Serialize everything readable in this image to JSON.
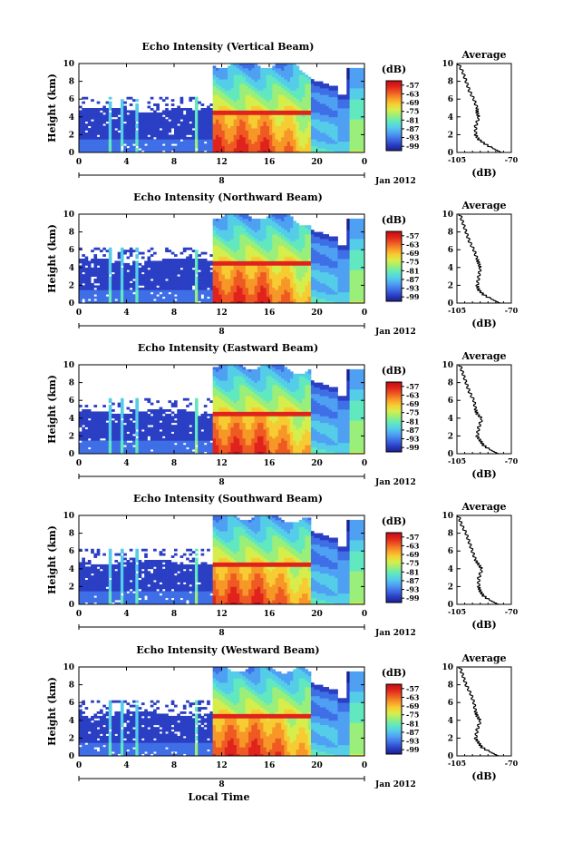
{
  "colors": {
    "colormap": [
      "#1b1f8f",
      "#2a3fc4",
      "#3f6fe6",
      "#4fa0f3",
      "#55cde9",
      "#61e8bf",
      "#9aee7a",
      "#d6ee4c",
      "#f7cc33",
      "#f79728",
      "#ee5a22",
      "#e0231c",
      "#c00d14"
    ],
    "axis": "#000000"
  },
  "chart_data": [
    {
      "type": "heatmap",
      "title": "Echo Intensity (Vertical Beam)",
      "ylabel": "Height (km)",
      "y_ticks": [
        "0",
        "2",
        "4",
        "6",
        "8",
        "10"
      ],
      "ylim": [
        0,
        10
      ],
      "x_ticks": [
        "0",
        "4",
        "8",
        "12",
        "16",
        "20",
        "0"
      ],
      "xlim": [
        0,
        24
      ],
      "date_tick": "8",
      "date_label": "Jan 2012",
      "colorbar_unit": "(dB)",
      "colorbar_ticks": [
        "-57",
        "-63",
        "-69",
        "-75",
        "-81",
        "-87",
        "-93",
        "-99"
      ],
      "zlim": [
        -102,
        -54
      ]
    },
    {
      "type": "heatmap",
      "title": "Echo Intensity (Northward Beam)",
      "ylabel": "Height (km)",
      "y_ticks": [
        "0",
        "2",
        "4",
        "6",
        "8",
        "10"
      ],
      "ylim": [
        0,
        10
      ],
      "x_ticks": [
        "0",
        "4",
        "8",
        "12",
        "16",
        "20",
        "0"
      ],
      "xlim": [
        0,
        24
      ],
      "date_tick": "8",
      "date_label": "Jan 2012",
      "colorbar_unit": "(dB)",
      "colorbar_ticks": [
        "-57",
        "-63",
        "-69",
        "-75",
        "-81",
        "-87",
        "-93",
        "-99"
      ],
      "zlim": [
        -102,
        -54
      ]
    },
    {
      "type": "heatmap",
      "title": "Echo Intensity (Eastward Beam)",
      "ylabel": "Height (km)",
      "y_ticks": [
        "0",
        "2",
        "4",
        "6",
        "8",
        "10"
      ],
      "ylim": [
        0,
        10
      ],
      "x_ticks": [
        "0",
        "4",
        "8",
        "12",
        "16",
        "20",
        "0"
      ],
      "xlim": [
        0,
        24
      ],
      "date_tick": "8",
      "date_label": "Jan 2012",
      "colorbar_unit": "(dB)",
      "colorbar_ticks": [
        "-57",
        "-63",
        "-69",
        "-75",
        "-81",
        "-87",
        "-93",
        "-99"
      ],
      "zlim": [
        -102,
        -54
      ]
    },
    {
      "type": "heatmap",
      "title": "Echo Intensity (Southward Beam)",
      "ylabel": "Height (km)",
      "y_ticks": [
        "0",
        "2",
        "4",
        "6",
        "8",
        "10"
      ],
      "ylim": [
        0,
        10
      ],
      "x_ticks": [
        "0",
        "4",
        "8",
        "12",
        "16",
        "20",
        "0"
      ],
      "xlim": [
        0,
        24
      ],
      "date_tick": "8",
      "date_label": "Jan 2012",
      "colorbar_unit": "(dB)",
      "colorbar_ticks": [
        "-57",
        "-63",
        "-69",
        "-75",
        "-81",
        "-87",
        "-93",
        "-99"
      ],
      "zlim": [
        -102,
        -54
      ]
    },
    {
      "type": "heatmap",
      "title": "Echo Intensity (Westward Beam)",
      "ylabel": "Height (km)",
      "y_ticks": [
        "0",
        "2",
        "4",
        "6",
        "8",
        "10"
      ],
      "ylim": [
        0,
        10
      ],
      "x_ticks": [
        "0",
        "4",
        "8",
        "12",
        "16",
        "20",
        "0"
      ],
      "xlim": [
        0,
        24
      ],
      "date_tick": "8",
      "date_label": "Jan 2012",
      "colorbar_unit": "(dB)",
      "colorbar_ticks": [
        "-57",
        "-63",
        "-69",
        "-75",
        "-81",
        "-87",
        "-93",
        "-99"
      ],
      "zlim": [
        -102,
        -54
      ],
      "xlabel": "Local Time"
    },
    {
      "type": "line",
      "title": "Average",
      "xlabel": "(dB)",
      "ylabel": "Height (km)",
      "x_ticks": [
        "-105",
        "-70"
      ],
      "xlim": [
        -105,
        -70
      ],
      "y_ticks": [
        "0",
        "2",
        "4",
        "6",
        "8",
        "10"
      ],
      "ylim": [
        0,
        10
      ],
      "x": [
        -76,
        -82,
        -87,
        -91,
        -93,
        -93,
        -91,
        -92,
        -92,
        -94,
        -97,
        -99,
        -101,
        -104
      ],
      "y": [
        0,
        0.5,
        1,
        1.5,
        2,
        3,
        4,
        4.5,
        5,
        6,
        7,
        8,
        9,
        10
      ]
    },
    {
      "type": "line",
      "title": "Average",
      "xlabel": "(dB)",
      "ylabel": "Height (km)",
      "x_ticks": [
        "-105",
        "-70"
      ],
      "xlim": [
        -105,
        -70
      ],
      "y_ticks": [
        "0",
        "2",
        "4",
        "6",
        "8",
        "10"
      ],
      "ylim": [
        0,
        10
      ],
      "x": [
        -77,
        -83,
        -88,
        -91,
        -92,
        -91,
        -90,
        -91,
        -92,
        -94,
        -97,
        -99,
        -101,
        -103
      ],
      "y": [
        0,
        0.5,
        1,
        1.5,
        2,
        3,
        4,
        4.5,
        5,
        6,
        7,
        8,
        9,
        10
      ]
    },
    {
      "type": "line",
      "title": "Average",
      "xlabel": "(dB)",
      "ylabel": "Height (km)",
      "x_ticks": [
        "-105",
        "-70"
      ],
      "xlim": [
        -105,
        -70
      ],
      "y_ticks": [
        "0",
        "2",
        "4",
        "6",
        "8",
        "10"
      ],
      "ylim": [
        0,
        10
      ],
      "x": [
        -78,
        -84,
        -88,
        -90,
        -92,
        -91,
        -89,
        -92,
        -93,
        -94,
        -97,
        -99,
        -101,
        -103
      ],
      "y": [
        0,
        0.5,
        1,
        1.5,
        2,
        3,
        4,
        4.5,
        5,
        6,
        7,
        8,
        9,
        10
      ]
    },
    {
      "type": "line",
      "title": "Average",
      "xlabel": "(dB)",
      "ylabel": "Height (km)",
      "x_ticks": [
        "-105",
        "-70"
      ],
      "xlim": [
        -105,
        -70
      ],
      "y_ticks": [
        "0",
        "2",
        "4",
        "6",
        "8",
        "10"
      ],
      "ylim": [
        0,
        10
      ],
      "x": [
        -78,
        -84,
        -88,
        -90,
        -91,
        -91,
        -89,
        -91,
        -93,
        -95,
        -97,
        -99,
        -102,
        -104
      ],
      "y": [
        0,
        0.5,
        1,
        1.5,
        2,
        3,
        4,
        4.5,
        5,
        6,
        7,
        8,
        9,
        10
      ]
    },
    {
      "type": "line",
      "title": "Average",
      "xlabel": "(dB)",
      "ylabel": "Height (km)",
      "x_ticks": [
        "-105",
        "-70"
      ],
      "xlim": [
        -105,
        -70
      ],
      "y_ticks": [
        "0",
        "2",
        "4",
        "6",
        "8",
        "10"
      ],
      "ylim": [
        0,
        10
      ],
      "x": [
        -78,
        -84,
        -89,
        -91,
        -93,
        -92,
        -90,
        -92,
        -93,
        -94,
        -96,
        -99,
        -101,
        -103
      ],
      "y": [
        0,
        0.5,
        1,
        1.5,
        2,
        3,
        4,
        4.5,
        5,
        6,
        7,
        8,
        9,
        10
      ]
    }
  ]
}
